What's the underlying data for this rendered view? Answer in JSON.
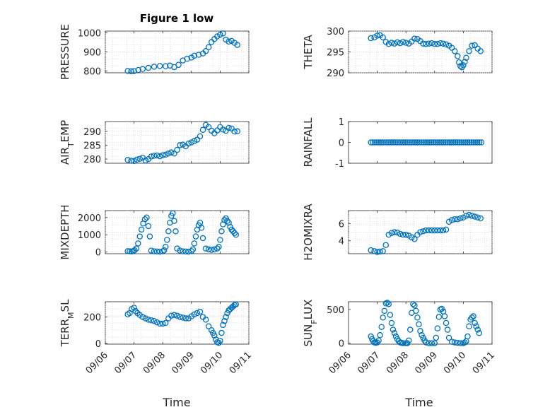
{
  "chart_data": [
    {
      "type": "scatter",
      "title": "Figure 1 low",
      "ylabel": "PRESSURE",
      "xlabel": "",
      "ylim": [
        790,
        1010
      ],
      "yticks": [
        800,
        900,
        1000
      ],
      "ytick_labels": [
        "800",
        "900",
        "1000"
      ],
      "xlim": [
        0,
        5
      ],
      "xticks": [
        0,
        1,
        2,
        3,
        4,
        5
      ],
      "xtick_labels": [],
      "grid": true,
      "color": "#0072bd",
      "x": [
        0.78,
        0.9,
        1.0,
        1.15,
        1.3,
        1.5,
        1.7,
        1.9,
        2.1,
        2.25,
        2.4,
        2.55,
        2.7,
        2.85,
        3.0,
        3.1,
        3.25,
        3.4,
        3.5,
        3.6,
        3.7,
        3.8,
        3.9,
        4.0,
        4.1,
        4.2,
        4.3,
        4.4,
        4.5,
        4.6
      ],
      "y": [
        800,
        798,
        799,
        805,
        810,
        816,
        822,
        826,
        825,
        828,
        820,
        832,
        855,
        864,
        870,
        880,
        885,
        892,
        905,
        925,
        952,
        968,
        982,
        991,
        998,
        965,
        955,
        958,
        948,
        937
      ]
    },
    {
      "type": "scatter",
      "ylabel": "THETA",
      "ylim": [
        290,
        300
      ],
      "yticks": [
        290,
        295,
        300
      ],
      "ytick_labels": [
        "290",
        "295",
        "300"
      ],
      "xlim": [
        0,
        5
      ],
      "xticks": [
        0,
        1,
        2,
        3,
        4,
        5
      ],
      "xtick_labels": [],
      "grid": true,
      "color": "#0072bd",
      "x": [
        0.78,
        0.9,
        1.0,
        1.1,
        1.2,
        1.3,
        1.4,
        1.5,
        1.6,
        1.7,
        1.8,
        1.9,
        2.0,
        2.1,
        2.2,
        2.3,
        2.4,
        2.5,
        2.6,
        2.7,
        2.8,
        2.9,
        3.0,
        3.1,
        3.2,
        3.3,
        3.4,
        3.5,
        3.6,
        3.7,
        3.8,
        3.85,
        3.9,
        3.95,
        4.0,
        4.05,
        4.1,
        4.2,
        4.3,
        4.4,
        4.5,
        4.6
      ],
      "y": [
        298.3,
        298.5,
        298.9,
        299.0,
        298.5,
        297.4,
        296.9,
        297.2,
        297.0,
        297.3,
        297.1,
        297.4,
        297.2,
        297.0,
        297.5,
        298.2,
        298.1,
        297.6,
        297.0,
        296.9,
        297.0,
        297.1,
        296.9,
        296.9,
        297.1,
        297.0,
        296.8,
        296.5,
        296.0,
        295.2,
        294.0,
        292.5,
        291.6,
        291.3,
        291.8,
        292.6,
        293.6,
        295.2,
        296.5,
        296.6,
        295.8,
        295.2
      ]
    },
    {
      "type": "scatter",
      "ylabel": "AIR_TEMP",
      "ylim": [
        278.5,
        293.5
      ],
      "yticks": [
        280,
        285,
        290
      ],
      "ytick_labels": [
        "280",
        "285",
        "290"
      ],
      "xlim": [
        0,
        5
      ],
      "xticks": [
        0,
        1,
        2,
        3,
        4,
        5
      ],
      "xtick_labels": [],
      "grid": true,
      "color": "#0072bd",
      "x": [
        0.78,
        0.9,
        1.0,
        1.1,
        1.2,
        1.3,
        1.4,
        1.5,
        1.6,
        1.7,
        1.8,
        1.9,
        2.0,
        2.1,
        2.2,
        2.3,
        2.4,
        2.5,
        2.6,
        2.7,
        2.8,
        2.9,
        3.0,
        3.1,
        3.2,
        3.3,
        3.4,
        3.5,
        3.6,
        3.7,
        3.8,
        3.9,
        4.0,
        4.1,
        4.2,
        4.3,
        4.4,
        4.5,
        4.6
      ],
      "y": [
        279.7,
        279.4,
        279.3,
        279.8,
        280.1,
        280.5,
        279.5,
        280.0,
        280.9,
        281.2,
        281.3,
        281.0,
        281.4,
        281.6,
        282.0,
        282.4,
        282.0,
        283.3,
        285.0,
        285.2,
        284.6,
        285.6,
        286.0,
        286.5,
        287.0,
        288.2,
        290.5,
        292.3,
        291.5,
        290.2,
        289.3,
        290.3,
        291.5,
        290.6,
        290.2,
        291.2,
        291.0,
        289.9,
        290.0
      ]
    },
    {
      "type": "scatter",
      "ylabel": "RAINFALL",
      "ylim": [
        -1,
        1
      ],
      "yticks": [
        -1,
        0,
        1
      ],
      "ytick_labels": [
        "-1",
        "0",
        "1"
      ],
      "xlim": [
        0,
        5
      ],
      "xticks": [
        0,
        1,
        2,
        3,
        4,
        5
      ],
      "xtick_labels": [],
      "grid": false,
      "color": "#0072bd",
      "x": [
        0.78,
        0.85,
        0.92,
        0.99,
        1.06,
        1.13,
        1.2,
        1.27,
        1.34,
        1.41,
        1.48,
        1.55,
        1.62,
        1.69,
        1.76,
        1.83,
        1.9,
        1.97,
        2.04,
        2.11,
        2.18,
        2.25,
        2.32,
        2.39,
        2.46,
        2.53,
        2.6,
        2.67,
        2.74,
        2.81,
        2.88,
        2.95,
        3.02,
        3.09,
        3.16,
        3.23,
        3.3,
        3.37,
        3.44,
        3.51,
        3.58,
        3.65,
        3.72,
        3.79,
        3.86,
        3.93,
        4.0,
        4.07,
        4.14,
        4.21,
        4.28,
        4.35,
        4.42,
        4.49,
        4.56,
        4.63
      ],
      "y": [
        0,
        0,
        0,
        0,
        0,
        0,
        0,
        0,
        0,
        0,
        0,
        0,
        0,
        0,
        0,
        0,
        0,
        0,
        0,
        0,
        0,
        0,
        0,
        0,
        0,
        0,
        0,
        0,
        0,
        0,
        0,
        0,
        0,
        0,
        0,
        0,
        0,
        0,
        0,
        0,
        0,
        0,
        0,
        0,
        0,
        0,
        0,
        0,
        0,
        0,
        0,
        0,
        0,
        0,
        0,
        0
      ]
    },
    {
      "type": "scatter",
      "ylabel": "MIXDEPTH",
      "ylim": [
        -100,
        2400
      ],
      "yticks": [
        0,
        1000,
        2000
      ],
      "ytick_labels": [
        "0",
        "1000",
        "2000"
      ],
      "xlim": [
        0,
        5
      ],
      "xticks": [
        0,
        1,
        2,
        3,
        4,
        5
      ],
      "xtick_labels": [],
      "grid": true,
      "color": "#0072bd",
      "x": [
        0.78,
        0.85,
        0.92,
        0.98,
        1.02,
        1.08,
        1.14,
        1.2,
        1.26,
        1.32,
        1.38,
        1.44,
        1.5,
        1.55,
        1.6,
        1.7,
        1.8,
        1.9,
        2.0,
        2.05,
        2.1,
        2.15,
        2.2,
        2.25,
        2.3,
        2.35,
        2.4,
        2.45,
        2.5,
        2.6,
        2.7,
        2.8,
        2.9,
        3.0,
        3.05,
        3.1,
        3.15,
        3.2,
        3.25,
        3.3,
        3.35,
        3.4,
        3.5,
        3.6,
        3.7,
        3.8,
        3.9,
        3.95,
        4.0,
        4.05,
        4.1,
        4.15,
        4.2,
        4.25,
        4.3,
        4.35,
        4.4,
        4.45,
        4.5,
        4.55
      ],
      "y": [
        50,
        40,
        30,
        60,
        100,
        200,
        500,
        900,
        1300,
        1650,
        1900,
        2000,
        1500,
        900,
        80,
        40,
        30,
        20,
        40,
        100,
        300,
        700,
        1200,
        1700,
        2100,
        2250,
        1800,
        1200,
        200,
        80,
        40,
        30,
        20,
        50,
        150,
        500,
        900,
        1300,
        1550,
        1700,
        1400,
        800,
        200,
        150,
        120,
        150,
        200,
        300,
        700,
        1200,
        1600,
        1850,
        1950,
        1800,
        1700,
        1450,
        1300,
        1200,
        1100,
        1000
      ]
    },
    {
      "type": "scatter",
      "ylabel": "H2OMIXRA",
      "ylim": [
        2.5,
        7.5
      ],
      "yticks": [
        4,
        6
      ],
      "ytick_labels": [
        "4",
        "6"
      ],
      "xlim": [
        0,
        5
      ],
      "xticks": [
        0,
        1,
        2,
        3,
        4,
        5
      ],
      "xtick_labels": [],
      "grid": true,
      "color": "#0072bd",
      "x": [
        0.78,
        0.9,
        1.0,
        1.1,
        1.2,
        1.3,
        1.4,
        1.5,
        1.6,
        1.7,
        1.8,
        1.9,
        2.0,
        2.1,
        2.2,
        2.3,
        2.4,
        2.5,
        2.6,
        2.7,
        2.8,
        2.9,
        3.0,
        3.1,
        3.2,
        3.3,
        3.4,
        3.5,
        3.6,
        3.7,
        3.8,
        3.9,
        4.0,
        4.1,
        4.2,
        4.3,
        4.4,
        4.5,
        4.6
      ],
      "y": [
        2.9,
        2.8,
        2.7,
        2.75,
        2.8,
        3.5,
        4.7,
        4.9,
        5.0,
        4.95,
        4.8,
        4.7,
        4.7,
        4.6,
        4.4,
        4.2,
        4.7,
        5.0,
        5.1,
        5.2,
        5.2,
        5.2,
        5.2,
        5.2,
        5.2,
        5.2,
        5.3,
        6.2,
        6.4,
        6.5,
        6.5,
        6.6,
        6.7,
        6.9,
        7.0,
        6.9,
        6.8,
        6.7,
        6.6
      ]
    },
    {
      "type": "scatter",
      "ylabel": "TERR_MSL",
      "xlabel": "Time",
      "ylim": [
        -5,
        315
      ],
      "yticks": [
        0,
        200
      ],
      "ytick_labels": [
        "0",
        "200"
      ],
      "xlim": [
        0,
        5
      ],
      "xticks": [
        0,
        1,
        2,
        3,
        4,
        5
      ],
      "xtick_labels": [
        "09/06",
        "09/07",
        "09/08",
        "09/09",
        "09/10",
        "09/11"
      ],
      "grid": true,
      "color": "#0072bd",
      "x": [
        0.78,
        0.85,
        0.92,
        1.0,
        1.05,
        1.12,
        1.2,
        1.3,
        1.4,
        1.5,
        1.6,
        1.7,
        1.8,
        1.9,
        2.0,
        2.1,
        2.2,
        2.3,
        2.4,
        2.5,
        2.6,
        2.7,
        2.8,
        2.9,
        3.0,
        3.1,
        3.2,
        3.3,
        3.4,
        3.5,
        3.6,
        3.7,
        3.75,
        3.8,
        3.85,
        3.9,
        3.95,
        4.0,
        4.05,
        4.1,
        4.15,
        4.2,
        4.25,
        4.3,
        4.35,
        4.4,
        4.45,
        4.5,
        4.55
      ],
      "y": [
        220,
        230,
        260,
        270,
        245,
        230,
        215,
        200,
        190,
        180,
        175,
        170,
        160,
        150,
        150,
        155,
        190,
        210,
        215,
        210,
        200,
        195,
        190,
        190,
        205,
        220,
        230,
        240,
        200,
        180,
        130,
        100,
        80,
        60,
        30,
        10,
        5,
        20,
        80,
        140,
        170,
        200,
        230,
        250,
        260,
        270,
        280,
        290,
        295
      ]
    },
    {
      "type": "scatter",
      "ylabel": "SUN_FLUX",
      "xlabel": "Time",
      "ylim": [
        -15,
        615
      ],
      "yticks": [
        0,
        500
      ],
      "ytick_labels": [
        "0",
        "500"
      ],
      "xlim": [
        0,
        5
      ],
      "xticks": [
        0,
        1,
        2,
        3,
        4,
        5
      ],
      "xtick_labels": [
        "09/06",
        "09/07",
        "09/08",
        "09/09",
        "09/10",
        "09/11"
      ],
      "grid": false,
      "color": "#0072bd",
      "x": [
        0.78,
        0.82,
        0.86,
        0.9,
        0.95,
        1.0,
        1.05,
        1.1,
        1.15,
        1.2,
        1.25,
        1.3,
        1.35,
        1.4,
        1.45,
        1.5,
        1.55,
        1.6,
        1.65,
        1.7,
        1.75,
        1.8,
        1.85,
        1.9,
        2.0,
        2.05,
        2.1,
        2.15,
        2.2,
        2.25,
        2.3,
        2.35,
        2.4,
        2.45,
        2.5,
        2.55,
        2.6,
        2.65,
        2.7,
        2.8,
        2.9,
        3.0,
        3.05,
        3.1,
        3.15,
        3.2,
        3.25,
        3.3,
        3.35,
        3.4,
        3.45,
        3.5,
        3.6,
        3.7,
        3.8,
        3.9,
        4.0,
        4.05,
        4.1,
        4.15,
        4.2,
        4.25,
        4.3,
        4.35,
        4.4,
        4.45,
        4.5,
        4.55
      ],
      "y": [
        100,
        60,
        30,
        10,
        5,
        10,
        40,
        120,
        240,
        380,
        480,
        590,
        600,
        580,
        420,
        300,
        200,
        150,
        100,
        60,
        30,
        10,
        5,
        0,
        0,
        0,
        40,
        200,
        450,
        580,
        560,
        480,
        380,
        280,
        180,
        120,
        80,
        40,
        10,
        0,
        0,
        0,
        80,
        220,
        390,
        500,
        510,
        470,
        400,
        300,
        200,
        80,
        20,
        10,
        5,
        0,
        0,
        10,
        30,
        100,
        250,
        350,
        380,
        400,
        300,
        250,
        200,
        150
      ]
    }
  ]
}
